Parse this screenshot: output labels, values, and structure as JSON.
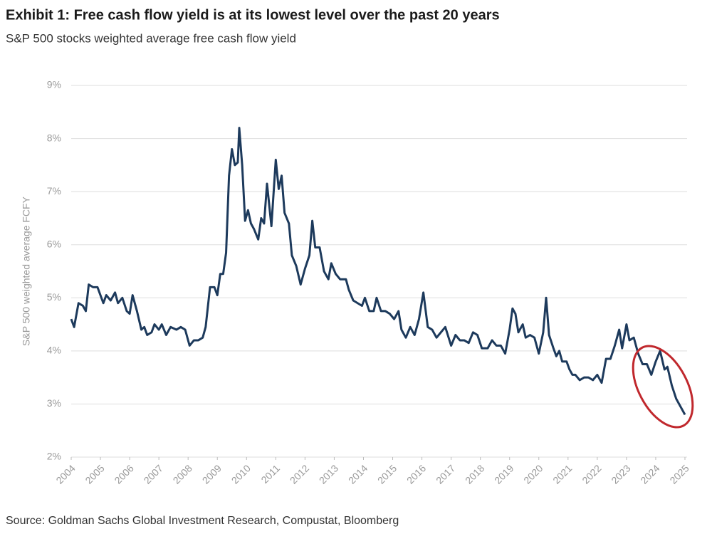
{
  "chart_data": {
    "type": "line",
    "title": "Exhibit 1: Free cash flow yield is at its lowest level over the past 20 years",
    "subtitle": "S&P 500 stocks weighted average free cash flow yield",
    "y_label": "S&P 500 weighted average FCFY",
    "source": "Source: Goldman Sachs Global Investment Research, Compustat, Bloomberg",
    "color": "#1d3a5c",
    "grid": true,
    "xlim": [
      2004,
      2025
    ],
    "xticks": [
      2004,
      2005,
      2006,
      2007,
      2008,
      2009,
      2010,
      2011,
      2012,
      2013,
      2014,
      2015,
      2016,
      2017,
      2018,
      2019,
      2020,
      2021,
      2022,
      2023,
      2024,
      2025
    ],
    "ylim": [
      2,
      9
    ],
    "yticks": [
      {
        "value": 2,
        "label": "2%"
      },
      {
        "value": 3,
        "label": "3%"
      },
      {
        "value": 4,
        "label": "4%"
      },
      {
        "value": 5,
        "label": "5%"
      },
      {
        "value": 6,
        "label": "6%"
      },
      {
        "value": 7,
        "label": "7%"
      },
      {
        "value": 8,
        "label": "8%"
      },
      {
        "value": 9,
        "label": "9%"
      }
    ],
    "x": [
      2004.0,
      2004.1,
      2004.25,
      2004.4,
      2004.5,
      2004.6,
      2004.75,
      2004.9,
      2005.1,
      2005.2,
      2005.35,
      2005.5,
      2005.6,
      2005.75,
      2005.9,
      2006.0,
      2006.1,
      2006.25,
      2006.4,
      2006.5,
      2006.6,
      2006.75,
      2006.85,
      2007.0,
      2007.1,
      2007.25,
      2007.4,
      2007.6,
      2007.75,
      2007.9,
      2008.05,
      2008.2,
      2008.35,
      2008.5,
      2008.6,
      2008.75,
      2008.9,
      2009.0,
      2009.1,
      2009.2,
      2009.3,
      2009.4,
      2009.5,
      2009.6,
      2009.7,
      2009.75,
      2009.85,
      2009.95,
      2010.05,
      2010.15,
      2010.25,
      2010.4,
      2010.5,
      2010.6,
      2010.7,
      2010.85,
      2011.0,
      2011.1,
      2011.2,
      2011.3,
      2011.45,
      2011.55,
      2011.7,
      2011.85,
      2012.0,
      2012.15,
      2012.25,
      2012.35,
      2012.5,
      2012.65,
      2012.8,
      2012.9,
      2013.05,
      2013.2,
      2013.4,
      2013.5,
      2013.65,
      2013.8,
      2013.95,
      2014.05,
      2014.2,
      2014.35,
      2014.45,
      2014.6,
      2014.75,
      2014.9,
      2015.05,
      2015.2,
      2015.3,
      2015.45,
      2015.6,
      2015.75,
      2015.9,
      2016.05,
      2016.2,
      2016.35,
      2016.5,
      2016.65,
      2016.8,
      2017.0,
      2017.15,
      2017.3,
      2017.45,
      2017.6,
      2017.75,
      2017.9,
      2018.05,
      2018.25,
      2018.4,
      2018.55,
      2018.7,
      2018.85,
      2019.0,
      2019.1,
      2019.2,
      2019.3,
      2019.45,
      2019.55,
      2019.7,
      2019.85,
      2020.0,
      2020.15,
      2020.25,
      2020.35,
      2020.5,
      2020.6,
      2020.7,
      2020.8,
      2020.95,
      2021.05,
      2021.15,
      2021.25,
      2021.4,
      2021.55,
      2021.7,
      2021.85,
      2022.0,
      2022.15,
      2022.3,
      2022.45,
      2022.6,
      2022.75,
      2022.85,
      2023.0,
      2023.1,
      2023.25,
      2023.4,
      2023.55,
      2023.7,
      2023.85,
      2024.0,
      2024.15,
      2024.3,
      2024.4,
      2024.55,
      2024.7,
      2024.85,
      2024.95,
      2025.0
    ],
    "values": [
      4.6,
      4.45,
      4.9,
      4.85,
      4.75,
      5.25,
      5.2,
      5.2,
      4.9,
      5.05,
      4.95,
      5.1,
      4.9,
      5.0,
      4.75,
      4.7,
      5.05,
      4.75,
      4.4,
      4.45,
      4.3,
      4.35,
      4.5,
      4.4,
      4.5,
      4.3,
      4.45,
      4.4,
      4.45,
      4.4,
      4.1,
      4.2,
      4.2,
      4.25,
      4.45,
      5.2,
      5.2,
      5.05,
      5.45,
      5.45,
      5.85,
      7.3,
      7.8,
      7.5,
      7.55,
      8.2,
      7.5,
      6.45,
      6.65,
      6.4,
      6.3,
      6.1,
      6.5,
      6.4,
      7.15,
      6.35,
      7.6,
      7.05,
      7.3,
      6.6,
      6.4,
      5.8,
      5.6,
      5.25,
      5.55,
      5.8,
      6.45,
      5.95,
      5.95,
      5.5,
      5.35,
      5.65,
      5.45,
      5.35,
      5.35,
      5.15,
      4.95,
      4.9,
      4.85,
      5.0,
      4.75,
      4.75,
      5.0,
      4.75,
      4.75,
      4.7,
      4.6,
      4.75,
      4.4,
      4.25,
      4.45,
      4.3,
      4.6,
      5.1,
      4.45,
      4.4,
      4.25,
      4.35,
      4.45,
      4.1,
      4.3,
      4.2,
      4.2,
      4.15,
      4.35,
      4.3,
      4.05,
      4.05,
      4.2,
      4.1,
      4.1,
      3.95,
      4.4,
      4.8,
      4.7,
      4.35,
      4.5,
      4.25,
      4.3,
      4.25,
      3.95,
      4.35,
      5.0,
      4.3,
      4.05,
      3.9,
      4.0,
      3.8,
      3.8,
      3.65,
      3.55,
      3.55,
      3.45,
      3.5,
      3.5,
      3.45,
      3.55,
      3.4,
      3.85,
      3.85,
      4.1,
      4.4,
      4.05,
      4.5,
      4.2,
      4.25,
      3.95,
      3.75,
      3.75,
      3.55,
      3.8,
      4.0,
      3.65,
      3.7,
      3.35,
      3.1,
      2.95,
      2.85,
      2.8
    ]
  }
}
